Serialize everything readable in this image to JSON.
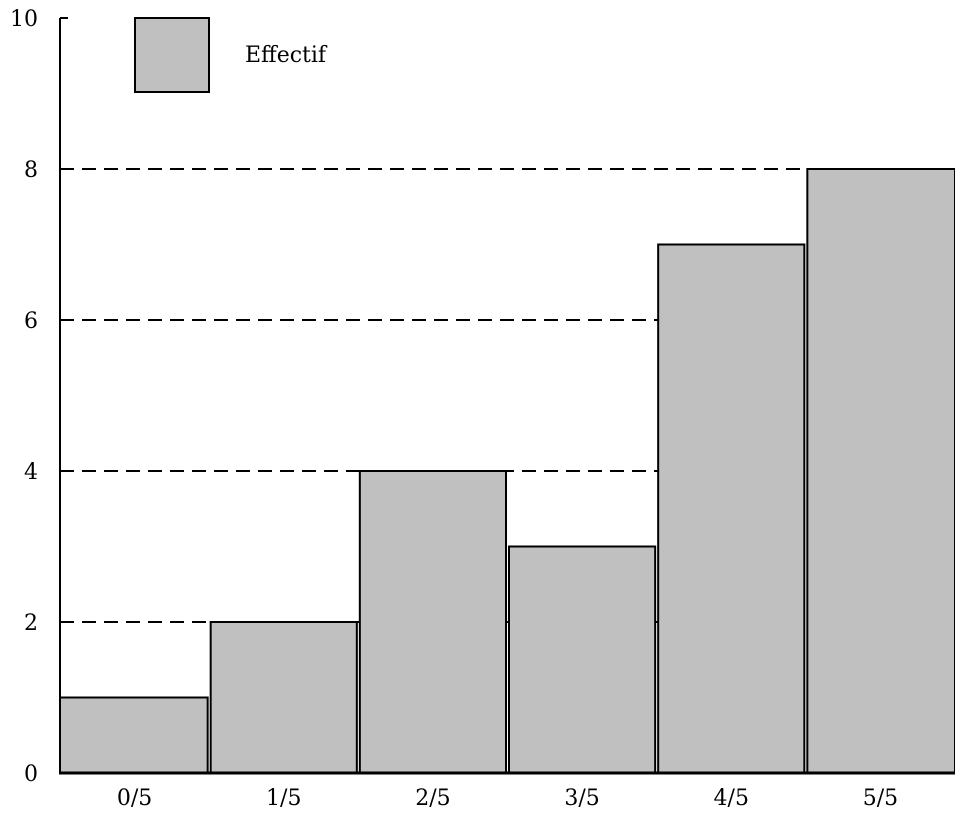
{
  "chart_data": {
    "type": "bar",
    "categories": [
      "0/5",
      "1/5",
      "2/5",
      "3/5",
      "4/5",
      "5/5"
    ],
    "series": [
      {
        "name": "Effectif",
        "values": [
          1,
          2,
          4,
          3,
          7,
          8
        ],
        "color": "#c0c0c0"
      }
    ],
    "yticks": [
      0,
      2,
      4,
      6,
      8,
      10
    ],
    "ylim": [
      0,
      10
    ],
    "grid": "horizontal dashed at 2, 4, 6, 8",
    "legend": "top-left",
    "colors": {
      "bar_fill": "#c0c0c0",
      "bar_stroke": "#000000",
      "grid": "#000000"
    }
  }
}
